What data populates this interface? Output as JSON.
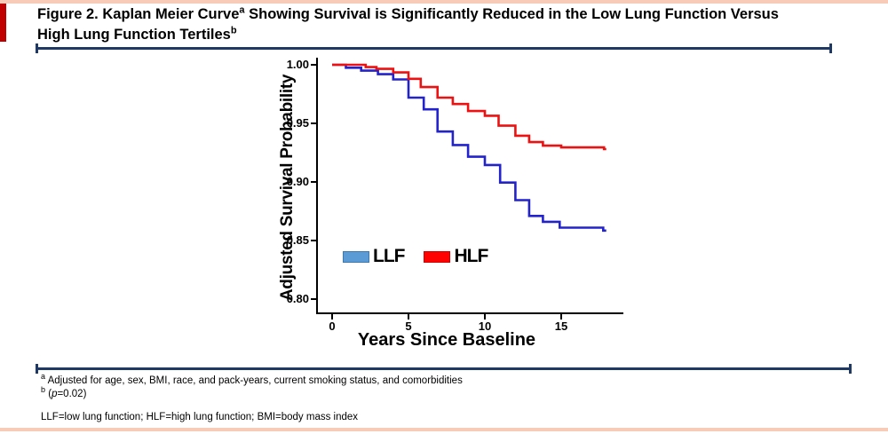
{
  "figure": {
    "title": {
      "part1": "Figure 2. Kaplan Meier Curve",
      "sup1": "a",
      "part2": " Showing Survival is Significantly Reduced in the Low Lung Function Versus High Lung Function Tertiles",
      "sup2": "b"
    },
    "footnotes": {
      "a_sup": "a",
      "a_text": "Adjusted for age, sex, BMI, race, and pack-years, current smoking status, and comorbidities",
      "b_sup": "b",
      "b_open": "(",
      "b_var": "p",
      "b_rest": "=0.02)"
    },
    "abbreviations": "LLF=low lung function; HLF=high lung function; BMI=body mass index",
    "colors": {
      "accent_bar": "#c00000",
      "page_border": "#f8cbb8",
      "divider": "#203864"
    }
  },
  "chart_data": {
    "type": "line",
    "step": true,
    "title": "",
    "xlabel": "Years Since Baseline",
    "ylabel": "Adjusted Survival Probability",
    "xlim": [
      0,
      18
    ],
    "ylim": [
      0.8,
      1.0
    ],
    "x_end": 17.95,
    "grid": false,
    "legend_position": "inside-lower-left",
    "xticks": [
      {
        "v": 0,
        "label": "0"
      },
      {
        "v": 5,
        "label": "5"
      },
      {
        "v": 10,
        "label": "10"
      },
      {
        "v": 15,
        "label": "15"
      }
    ],
    "yticks": [
      {
        "v": 0.8,
        "label": "0.80"
      },
      {
        "v": 0.85,
        "label": "0.85"
      },
      {
        "v": 0.9,
        "label": "0.90"
      },
      {
        "v": 0.95,
        "label": "0.95"
      },
      {
        "v": 1.0,
        "label": "1.00"
      }
    ],
    "series": [
      {
        "name": "LLF",
        "color": "#2323cd",
        "legend_color": "#5b9bd5",
        "legend_border": "#3e78ad",
        "points": [
          [
            0,
            1.0
          ],
          [
            0.9,
            0.9975
          ],
          [
            1.9,
            0.995
          ],
          [
            3,
            0.992
          ],
          [
            4,
            0.9875
          ],
          [
            5,
            0.972
          ],
          [
            6,
            0.962
          ],
          [
            6.9,
            0.943
          ],
          [
            7.9,
            0.9315
          ],
          [
            8.9,
            0.9215
          ],
          [
            10,
            0.9145
          ],
          [
            11,
            0.8995
          ],
          [
            12,
            0.8845
          ],
          [
            12.9,
            0.871
          ],
          [
            13.8,
            0.866
          ],
          [
            14.9,
            0.861
          ],
          [
            17.75,
            0.8585
          ]
        ]
      },
      {
        "name": "HLF",
        "color": "#ee1111",
        "legend_color": "#fe0202",
        "legend_border": "#d40000",
        "points": [
          [
            0,
            1.0
          ],
          [
            2.2,
            0.998
          ],
          [
            2.9,
            0.9965
          ],
          [
            4,
            0.9935
          ],
          [
            5,
            0.988
          ],
          [
            5.8,
            0.981
          ],
          [
            6.9,
            0.972
          ],
          [
            7.9,
            0.9665
          ],
          [
            8.9,
            0.9605
          ],
          [
            10,
            0.9565
          ],
          [
            10.9,
            0.948
          ],
          [
            12,
            0.9395
          ],
          [
            12.9,
            0.934
          ],
          [
            13.8,
            0.931
          ],
          [
            15,
            0.9295
          ],
          [
            17.8,
            0.928
          ]
        ]
      }
    ]
  }
}
